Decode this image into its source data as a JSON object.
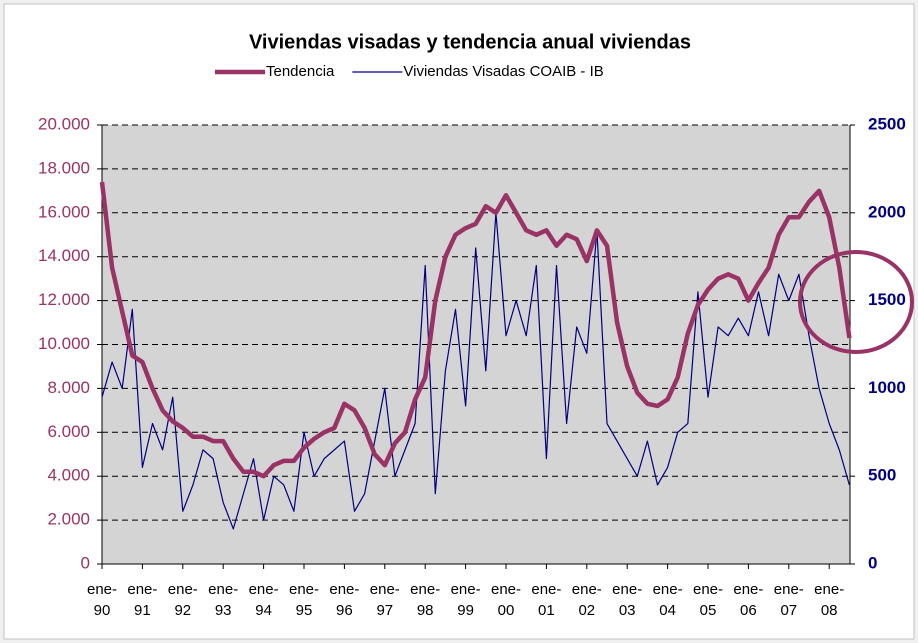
{
  "chart_data": {
    "type": "line",
    "title": "Viviendas visadas y tendencia anual viviendas",
    "legend": "top",
    "grid": true,
    "categories": [
      "ene-90",
      null,
      null,
      null,
      "ene-91",
      null,
      null,
      null,
      "ene-92",
      null,
      null,
      null,
      "ene-93",
      null,
      null,
      null,
      "ene-94",
      null,
      null,
      null,
      "ene-95",
      null,
      null,
      null,
      "ene-96",
      null,
      null,
      null,
      "ene-97",
      null,
      null,
      null,
      "ene-98",
      null,
      null,
      null,
      "ene-99",
      null,
      null,
      null,
      "ene-00",
      null,
      null,
      null,
      "ene-01",
      null,
      null,
      null,
      "ene-02",
      null,
      null,
      null,
      "ene-03",
      null,
      null,
      null,
      "ene-04",
      null,
      null,
      null,
      "ene-05",
      null,
      null,
      null,
      "ene-06",
      null,
      null,
      null,
      "ene-07",
      null,
      null,
      null,
      "ene-08",
      null,
      null
    ],
    "ylim": [
      0,
      20000
    ],
    "yticks": [
      0,
      {
        "value": 2000,
        "label": "2.000"
      },
      {
        "value": 4000,
        "label": "4.000"
      },
      {
        "value": 6000,
        "label": "6.000"
      },
      {
        "value": 8000,
        "label": "8.000"
      },
      {
        "value": 10000,
        "label": "10.000"
      },
      {
        "value": 12000,
        "label": "12.000"
      },
      {
        "value": 14000,
        "label": "14.000"
      },
      {
        "value": 16000,
        "label": "16.000"
      },
      {
        "value": 18000,
        "label": "18.000"
      },
      {
        "value": 20000,
        "label": "20.000"
      }
    ],
    "y2lim": [
      0,
      2500
    ],
    "y2ticks": [
      0,
      500,
      1000,
      1500,
      2000,
      2500
    ],
    "series": [
      {
        "name": "Tendencia",
        "color": "#993366",
        "axis": "y",
        "values": [
          17400,
          13500,
          11500,
          9500,
          9200,
          8000,
          7000,
          6500,
          6200,
          5800,
          5800,
          5600,
          5600,
          4800,
          4200,
          4200,
          4000,
          4500,
          4700,
          4700,
          5300,
          5700,
          6000,
          6200,
          7300,
          7000,
          6200,
          5000,
          4500,
          5500,
          6000,
          7500,
          8500,
          12000,
          14000,
          15000,
          15300,
          15500,
          16300,
          16000,
          16800,
          16000,
          15200,
          15000,
          15200,
          14500,
          15000,
          14800,
          13800,
          15200,
          14500,
          11000,
          9000,
          7800,
          7300,
          7200,
          7500,
          8500,
          10500,
          11800,
          12500,
          13000,
          13200,
          13000,
          12000,
          12800,
          13500,
          15000,
          15800,
          15800,
          16500,
          17000,
          15800,
          13500,
          10300
        ]
      },
      {
        "name": "Viviendas Visadas COAIB - IB",
        "color": "#000080",
        "axis": "y2",
        "values": [
          950,
          1150,
          1000,
          1450,
          550,
          800,
          650,
          950,
          300,
          450,
          650,
          600,
          350,
          200,
          400,
          600,
          250,
          500,
          450,
          300,
          750,
          500,
          600,
          650,
          700,
          300,
          400,
          700,
          1000,
          500,
          650,
          800,
          1700,
          400,
          1100,
          1450,
          900,
          1800,
          1100,
          2000,
          1300,
          1500,
          1300,
          1700,
          600,
          1700,
          800,
          1350,
          1200,
          1900,
          800,
          700,
          600,
          500,
          700,
          450,
          550,
          750,
          800,
          1550,
          950,
          1350,
          1300,
          1400,
          1300,
          1550,
          1300,
          1650,
          1500,
          1650,
          1300,
          1000,
          800,
          650,
          450
        ]
      }
    ]
  }
}
